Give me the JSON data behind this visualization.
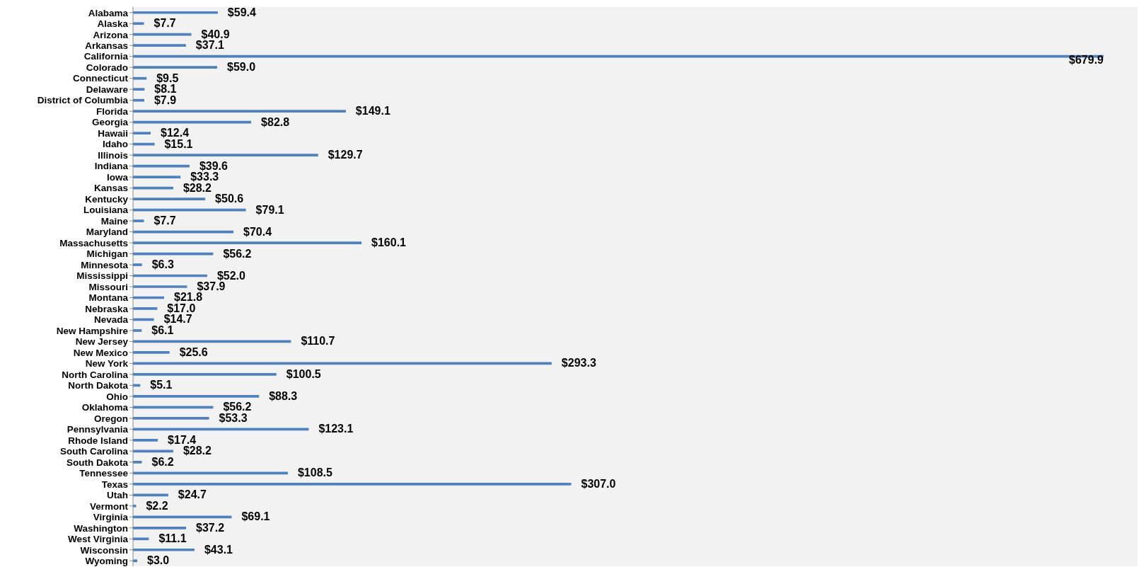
{
  "chart_data": {
    "type": "bar",
    "orientation": "horizontal",
    "categories": [
      "Alabama",
      "Alaska",
      "Arizona",
      "Arkansas",
      "California",
      "Colorado",
      "Connecticut",
      "Delaware",
      "District of Columbia",
      "Florida",
      "Georgia",
      "Hawaii",
      "Idaho",
      "Illinois",
      "Indiana",
      "Iowa",
      "Kansas",
      "Kentucky",
      "Louisiana",
      "Maine",
      "Maryland",
      "Massachusetts",
      "Michigan",
      "Minnesota",
      "Mississippi",
      "Missouri",
      "Montana",
      "Nebraska",
      "Nevada",
      "New Hampshire",
      "New Jersey",
      "New Mexico",
      "New York",
      "North Carolina",
      "North Dakota",
      "Ohio",
      "Oklahoma",
      "Oregon",
      "Pennsylvania",
      "Rhode Island",
      "South Carolina",
      "South Dakota",
      "Tennessee",
      "Texas",
      "Utah",
      "Vermont",
      "Virginia",
      "Washington",
      "West Virginia",
      "Wisconsin",
      "Wyoming"
    ],
    "values": [
      59.4,
      7.7,
      40.9,
      37.1,
      679.9,
      59.0,
      9.5,
      8.1,
      7.9,
      149.1,
      82.8,
      12.4,
      15.1,
      129.7,
      39.6,
      33.3,
      28.2,
      50.6,
      79.1,
      7.7,
      70.4,
      160.1,
      56.2,
      6.3,
      52.0,
      37.9,
      21.8,
      17.0,
      14.7,
      6.1,
      110.7,
      25.6,
      293.3,
      100.5,
      5.1,
      88.3,
      56.2,
      53.3,
      123.1,
      17.4,
      28.2,
      6.2,
      108.5,
      307.0,
      24.7,
      2.2,
      69.1,
      37.2,
      11.1,
      43.1,
      3.0
    ],
    "value_labels": [
      "$59.4",
      "$7.7",
      "$40.9",
      "$37.1",
      "$679.9",
      "$59.0",
      "$9.5",
      "$8.1",
      "$7.9",
      "$149.1",
      "$82.8",
      "$12.4",
      "$15.1",
      "$129.7",
      "$39.6",
      "$33.3",
      "$28.2",
      "$50.6",
      "$79.1",
      "$7.7",
      "$70.4",
      "$160.1",
      "$56.2",
      "$6.3",
      "$52.0",
      "$37.9",
      "$21.8",
      "$17.0",
      "$14.7",
      "$6.1",
      "$110.7",
      "$25.6",
      "$293.3",
      "$100.5",
      "$5.1",
      "$88.3",
      "$56.2",
      "$53.3",
      "$123.1",
      "$17.4",
      "$28.2",
      "$6.2",
      "$108.5",
      "$307.0",
      "$24.7",
      "$2.2",
      "$69.1",
      "$37.2",
      "$11.1",
      "$43.1",
      "$3.0"
    ],
    "color": "#4f81bd",
    "legend": false
  }
}
